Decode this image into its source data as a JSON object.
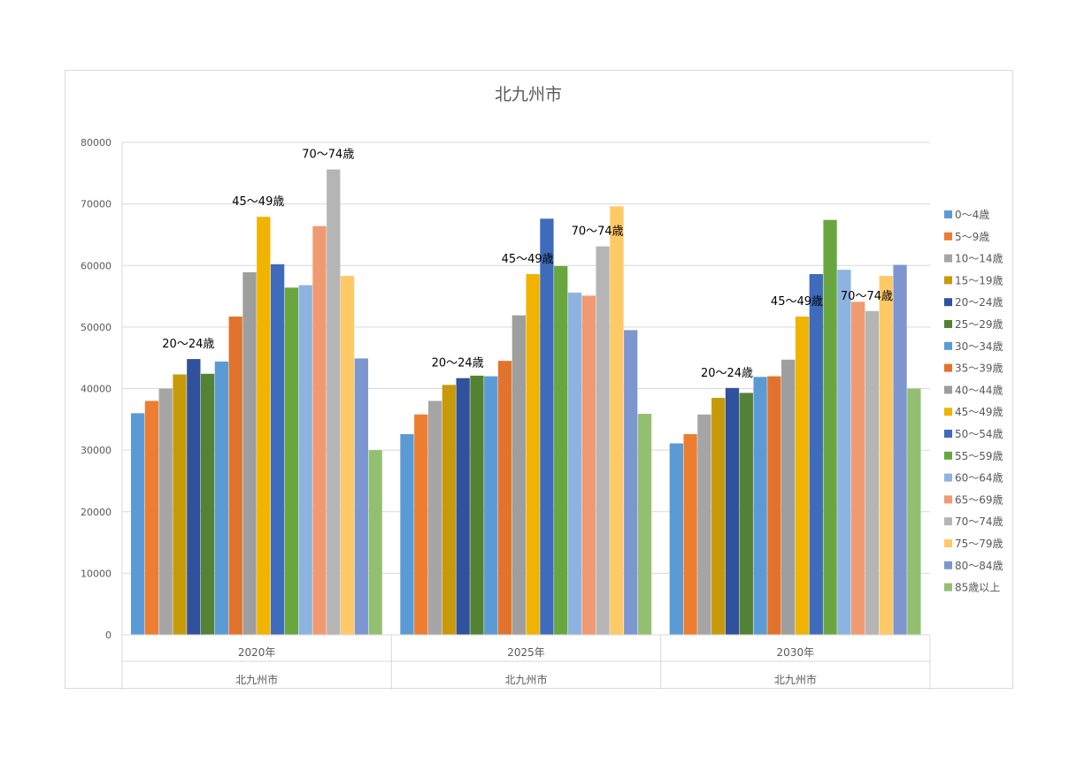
{
  "chart_data": {
    "type": "bar",
    "title": "北九州市",
    "ylim": [
      0,
      80000
    ],
    "yticks": [
      0,
      10000,
      20000,
      30000,
      40000,
      50000,
      60000,
      70000,
      80000
    ],
    "grid": true,
    "legend_position": "right",
    "categories": [
      "2020年",
      "2025年",
      "2030年"
    ],
    "category_group": "北九州市",
    "series": [
      {
        "name": "0～4歳",
        "color": "#5b9bd5",
        "values": [
          36000,
          32600,
          31100
        ]
      },
      {
        "name": "5～9歳",
        "color": "#ed7d31",
        "values": [
          38000,
          35800,
          32600
        ]
      },
      {
        "name": "10～14歳",
        "color": "#a5a5a5",
        "values": [
          40000,
          38000,
          35800
        ]
      },
      {
        "name": "15～19歳",
        "color": "#c79a0b",
        "values": [
          42300,
          40600,
          38500
        ]
      },
      {
        "name": "20～24歳",
        "color": "#30519b",
        "values": [
          44800,
          41700,
          40100
        ]
      },
      {
        "name": "25～29歳",
        "color": "#548235",
        "values": [
          42400,
          42100,
          39300
        ]
      },
      {
        "name": "30～34歳",
        "color": "#5b9bd5",
        "values": [
          44400,
          42000,
          41900
        ]
      },
      {
        "name": "35～39歳",
        "color": "#e1732d",
        "values": [
          51700,
          44500,
          42000
        ]
      },
      {
        "name": "40～44歳",
        "color": "#9e9e9e",
        "values": [
          58900,
          51900,
          44700
        ]
      },
      {
        "name": "45～49歳",
        "color": "#f0b400",
        "values": [
          67900,
          58600,
          51700
        ]
      },
      {
        "name": "50～54歳",
        "color": "#3e6bbb",
        "values": [
          60200,
          67600,
          58600
        ]
      },
      {
        "name": "55～59歳",
        "color": "#6aa63f",
        "values": [
          56400,
          59900,
          67400
        ]
      },
      {
        "name": "60～64歳",
        "color": "#8db3e0",
        "values": [
          56800,
          55600,
          59300
        ]
      },
      {
        "name": "65～69歳",
        "color": "#f09a72",
        "values": [
          66400,
          55100,
          54100
        ]
      },
      {
        "name": "70～74歳",
        "color": "#b5b5b5",
        "values": [
          75600,
          63100,
          52600
        ]
      },
      {
        "name": "75～79歳",
        "color": "#ffc966",
        "values": [
          58300,
          69600,
          58300
        ]
      },
      {
        "name": "80～84歳",
        "color": "#7e96d0",
        "values": [
          44900,
          49500,
          60100
        ]
      },
      {
        "name": "85歳以上",
        "color": "#93bf73",
        "values": [
          30000,
          35900,
          40000
        ]
      }
    ],
    "annotations": [
      {
        "text": "20～24歳",
        "category": 0,
        "series": 4
      },
      {
        "text": "45～49歳",
        "category": 0,
        "series": 9
      },
      {
        "text": "70～74歳",
        "category": 0,
        "series": 14
      },
      {
        "text": "20～24歳",
        "category": 1,
        "series": 4
      },
      {
        "text": "45～49歳",
        "category": 1,
        "series": 9
      },
      {
        "text": "70～74歳",
        "category": 1,
        "series": 14
      },
      {
        "text": "20～24歳",
        "category": 2,
        "series": 4
      },
      {
        "text": "45～49歳",
        "category": 2,
        "series": 9
      },
      {
        "text": "70～74歳",
        "category": 2,
        "series": 14
      }
    ]
  }
}
